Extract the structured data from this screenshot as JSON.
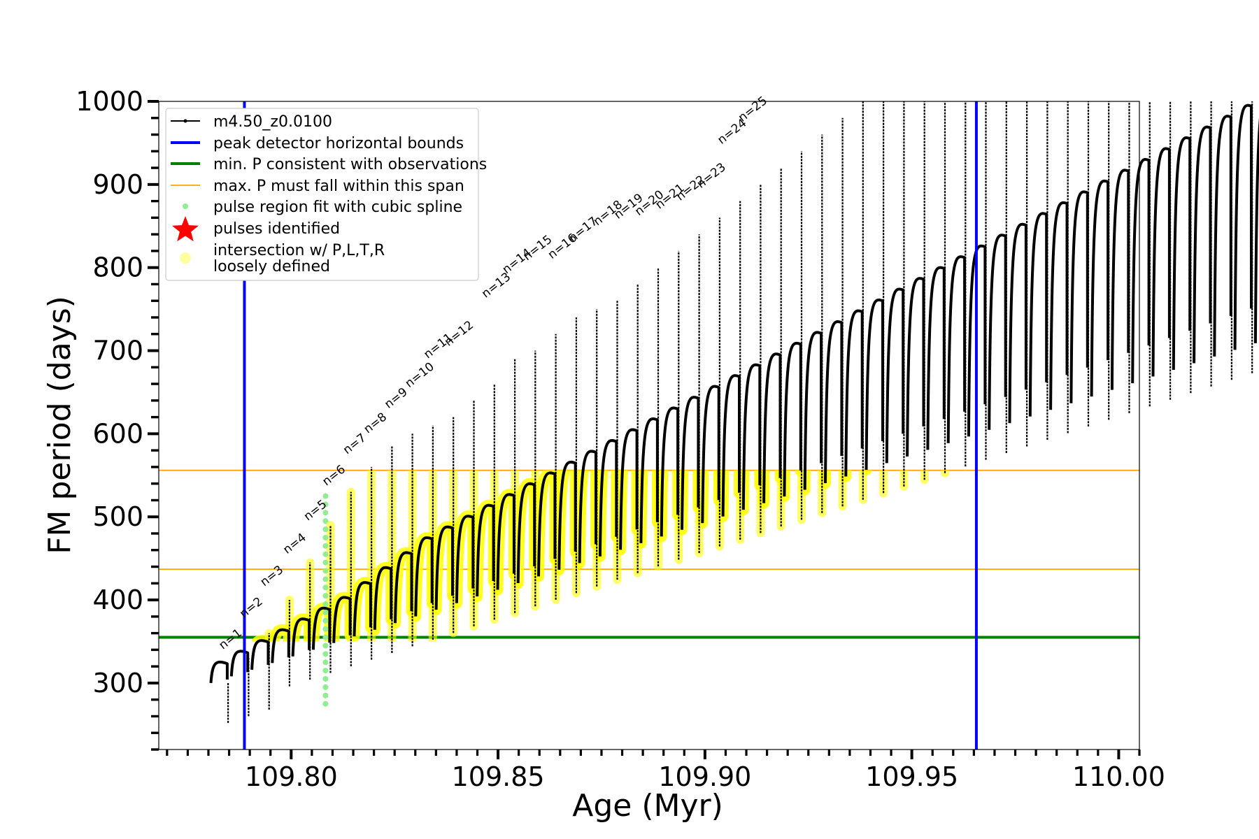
{
  "chart_data": {
    "type": "scatter",
    "xlabel": "Age (Myr)",
    "ylabel": "FM period (days)",
    "xlim": [
      109.768,
      110.005
    ],
    "ylim": [
      220,
      1000
    ],
    "xticks": [
      109.8,
      109.85,
      109.9,
      109.95,
      110.0
    ],
    "xtick_labels": [
      "109.80",
      "109.85",
      "109.90",
      "109.95",
      "110.00"
    ],
    "yticks": [
      300,
      400,
      500,
      600,
      700,
      800,
      900,
      1000
    ],
    "ytick_labels": [
      "300",
      "400",
      "500",
      "600",
      "700",
      "800",
      "900",
      "1000"
    ],
    "legend_position": "top-left",
    "legend": [
      {
        "label": "m4.50_z0.0100",
        "kind": "line-marker",
        "color": "#000000"
      },
      {
        "label": "peak detector horizontal bounds",
        "kind": "line",
        "color": "#0000ff"
      },
      {
        "label": "min. P consistent with observations",
        "kind": "line",
        "color": "#008000"
      },
      {
        "label": "max. P must fall within this span",
        "kind": "thin-line",
        "color": "#ffa500"
      },
      {
        "label": "pulse region fit with cubic spline",
        "kind": "dot",
        "color": "#90ee90"
      },
      {
        "label": "pulses identified",
        "kind": "star",
        "color": "#ff0000"
      },
      {
        "label": "intersection w/ P,L,T,R\nloosely defined",
        "kind": "circle",
        "color": "#ffffa0"
      }
    ],
    "vlines": [
      {
        "x": 109.7887,
        "color": "#0000ff"
      },
      {
        "x": 109.9656,
        "color": "#0000ff"
      }
    ],
    "hlines": [
      {
        "y": 355,
        "color": "#008000"
      },
      {
        "y": 437,
        "color": "#ffa500"
      },
      {
        "y": 556,
        "color": "#ffa500"
      }
    ],
    "model_track": {
      "name": "m4.50_z0.0100",
      "color": "#000000",
      "start_age": 109.78,
      "pulse_spacing": 0.00495,
      "pulse_count": 56,
      "base_period_start": 300,
      "base_period_slope_per_myr": 1620,
      "lobe_rise": [
        25,
        30,
        35,
        40,
        45,
        50,
        55,
        65,
        75,
        85,
        95,
        100,
        105,
        110,
        115,
        120,
        125,
        130,
        135,
        140,
        145,
        150,
        155,
        160,
        165,
        170,
        175,
        180,
        185,
        190,
        195,
        200,
        205,
        210,
        215,
        220,
        225,
        230,
        235,
        240,
        245,
        250,
        255,
        260,
        265,
        270,
        275,
        280,
        285,
        290,
        295,
        300,
        305,
        310,
        315,
        320
      ],
      "spike_peak": [
        300,
        330,
        360,
        400,
        445,
        490,
        530,
        560,
        585,
        600,
        610,
        620,
        640,
        660,
        690,
        700,
        720,
        740,
        750,
        760,
        780,
        800,
        820,
        840,
        860,
        880,
        900,
        920,
        940,
        960,
        980,
        1000,
        1000,
        1000,
        1000,
        1000,
        1000,
        1000,
        1000,
        1000,
        1000,
        1000,
        1000,
        1000,
        1000,
        1000,
        1000,
        1000,
        1000,
        1000,
        1000,
        1000,
        1000,
        1000,
        1000,
        1000
      ],
      "spike_drop": 70
    },
    "spline_region": {
      "x": 109.8083,
      "y_min": 275,
      "y_max": 530,
      "color": "#90ee90"
    },
    "intersection_region": {
      "color": "#ffff00",
      "x_start": 109.7905,
      "x_end": 109.9656,
      "y_floor": 355,
      "y_cap": 556
    },
    "pulse_labels": [
      "n=1",
      "n=2",
      "n=3",
      "n=4",
      "n=5",
      "n=6",
      "n=7",
      "n=8",
      "n=9",
      "n=10",
      "n=11",
      "n=12",
      "n=13",
      "n=14",
      "n=15",
      "n=16",
      "n=17",
      "n=18",
      "n=19",
      "n=20",
      "n=21",
      "n=22",
      "n=23",
      "n=24",
      "n=25"
    ],
    "pulse_label_positions": [
      {
        "x": 109.7835,
        "y": 340
      },
      {
        "x": 109.7885,
        "y": 378
      },
      {
        "x": 109.7935,
        "y": 416
      },
      {
        "x": 109.799,
        "y": 455
      },
      {
        "x": 109.804,
        "y": 495
      },
      {
        "x": 109.8085,
        "y": 537
      },
      {
        "x": 109.8135,
        "y": 575
      },
      {
        "x": 109.8185,
        "y": 600
      },
      {
        "x": 109.8235,
        "y": 630
      },
      {
        "x": 109.8285,
        "y": 655
      },
      {
        "x": 109.833,
        "y": 690
      },
      {
        "x": 109.838,
        "y": 705
      },
      {
        "x": 109.847,
        "y": 763
      },
      {
        "x": 109.852,
        "y": 792
      },
      {
        "x": 109.857,
        "y": 808
      },
      {
        "x": 109.863,
        "y": 810
      },
      {
        "x": 109.868,
        "y": 830
      },
      {
        "x": 109.874,
        "y": 850
      },
      {
        "x": 109.879,
        "y": 858
      },
      {
        "x": 109.884,
        "y": 862
      },
      {
        "x": 109.889,
        "y": 870
      },
      {
        "x": 109.894,
        "y": 880
      },
      {
        "x": 109.899,
        "y": 895
      },
      {
        "x": 109.904,
        "y": 948
      },
      {
        "x": 109.909,
        "y": 975
      }
    ]
  }
}
